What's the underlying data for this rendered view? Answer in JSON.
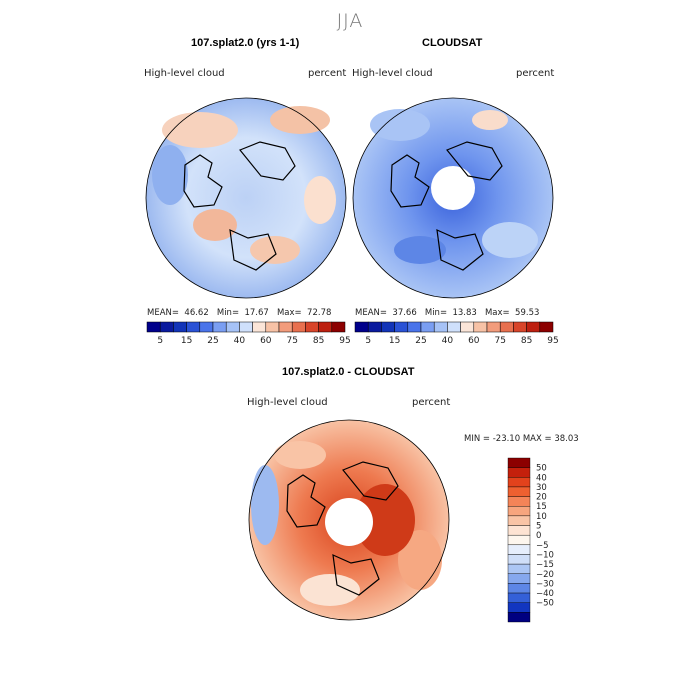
{
  "season": "JJA",
  "panels": [
    {
      "id": "model",
      "title": "107.splat2.0 (yrs 1-1)",
      "field": "High-level cloud",
      "units": "percent",
      "stats": {
        "mean_label": "MEAN=",
        "mean": "46.62",
        "min_label": "Min=",
        "min": "17.67",
        "max_label": "Max=",
        "max": "72.78"
      }
    },
    {
      "id": "obs",
      "title": "CLOUDSAT",
      "field": "High-level cloud",
      "units": "percent",
      "stats": {
        "mean_label": "MEAN=",
        "mean": "37.66",
        "min_label": "Min=",
        "min": "13.83",
        "max_label": "Max=",
        "max": "59.53"
      }
    },
    {
      "id": "diff",
      "title": "107.splat2.0 - CLOUDSAT",
      "field": "High-level cloud",
      "units": "percent",
      "minmax": "MIN = -23.10 MAX =  38.03"
    }
  ],
  "abs_colorbar": {
    "colors": [
      "#00008b",
      "#0a1a9e",
      "#1234b8",
      "#2a52d6",
      "#4a74ea",
      "#7a9ef2",
      "#a6c2f6",
      "#cfe0fb",
      "#fbe5d8",
      "#f7c2a6",
      "#f29c7c",
      "#e8704f",
      "#d8452a",
      "#bd2010",
      "#8c0000"
    ],
    "labels": [
      "5",
      "15",
      "25",
      "40",
      "60",
      "75",
      "85",
      "95"
    ]
  },
  "diff_colorbar": {
    "colors": [
      "#8c0000",
      "#c4200c",
      "#e2421c",
      "#ee6030",
      "#f48458",
      "#f7a57e",
      "#f9c4a6",
      "#fde3d3",
      "#fdf6ee",
      "#e6eefc",
      "#cfdef8",
      "#acc6f4",
      "#86a8ee",
      "#5d86e6",
      "#3460d8",
      "#1236c0",
      "#000080"
    ],
    "labels": [
      "50",
      "40",
      "30",
      "20",
      "15",
      "10",
      "5",
      "0",
      "−5",
      "−10",
      "−15",
      "−20",
      "−30",
      "−40",
      "−50"
    ]
  },
  "icons": [
    "polar-map-model",
    "polar-map-obs",
    "polar-map-diff"
  ]
}
